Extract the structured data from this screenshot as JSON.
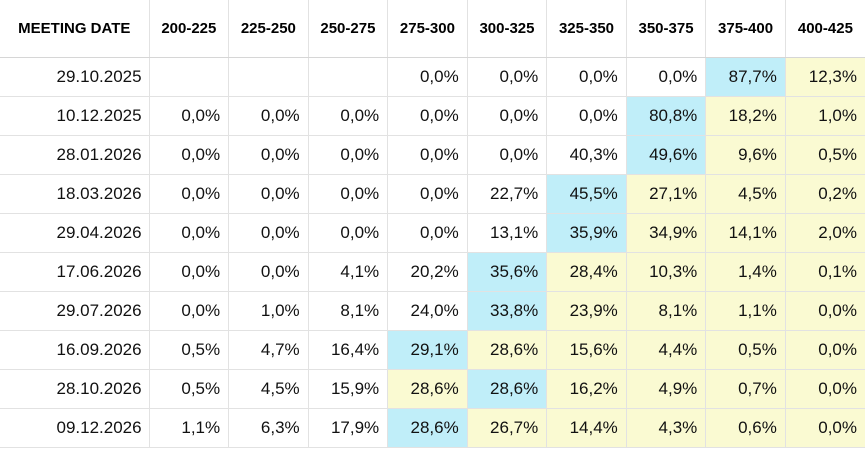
{
  "table": {
    "header": [
      "MEETING DATE",
      "200-225",
      "225-250",
      "250-275",
      "275-300",
      "300-325",
      "325-350",
      "350-375",
      "375-400",
      "400-425"
    ],
    "colors": {
      "blue": "#c0eef9",
      "yellow": "#fafad2"
    },
    "rows": [
      {
        "date": "29.10.2025",
        "cells": [
          "",
          "",
          "",
          "0,0%",
          "0,0%",
          "0,0%",
          "0,0%",
          "87,7%",
          "12,3%"
        ],
        "hl": [
          "",
          "",
          "",
          "",
          "",
          "",
          "",
          "b",
          "y"
        ]
      },
      {
        "date": "10.12.2025",
        "cells": [
          "0,0%",
          "0,0%",
          "0,0%",
          "0,0%",
          "0,0%",
          "0,0%",
          "80,8%",
          "18,2%",
          "1,0%"
        ],
        "hl": [
          "",
          "",
          "",
          "",
          "",
          "",
          "b",
          "y",
          "y"
        ]
      },
      {
        "date": "28.01.2026",
        "cells": [
          "0,0%",
          "0,0%",
          "0,0%",
          "0,0%",
          "0,0%",
          "40,3%",
          "49,6%",
          "9,6%",
          "0,5%"
        ],
        "hl": [
          "",
          "",
          "",
          "",
          "",
          "",
          "b",
          "y",
          "y"
        ]
      },
      {
        "date": "18.03.2026",
        "cells": [
          "0,0%",
          "0,0%",
          "0,0%",
          "0,0%",
          "22,7%",
          "45,5%",
          "27,1%",
          "4,5%",
          "0,2%"
        ],
        "hl": [
          "",
          "",
          "",
          "",
          "",
          "b",
          "y",
          "y",
          "y"
        ]
      },
      {
        "date": "29.04.2026",
        "cells": [
          "0,0%",
          "0,0%",
          "0,0%",
          "0,0%",
          "13,1%",
          "35,9%",
          "34,9%",
          "14,1%",
          "2,0%"
        ],
        "hl": [
          "",
          "",
          "",
          "",
          "",
          "b",
          "y",
          "y",
          "y"
        ]
      },
      {
        "date": "17.06.2026",
        "cells": [
          "0,0%",
          "0,0%",
          "4,1%",
          "20,2%",
          "35,6%",
          "28,4%",
          "10,3%",
          "1,4%",
          "0,1%"
        ],
        "hl": [
          "",
          "",
          "",
          "",
          "b",
          "y",
          "y",
          "y",
          "y"
        ]
      },
      {
        "date": "29.07.2026",
        "cells": [
          "0,0%",
          "1,0%",
          "8,1%",
          "24,0%",
          "33,8%",
          "23,9%",
          "8,1%",
          "1,1%",
          "0,0%"
        ],
        "hl": [
          "",
          "",
          "",
          "",
          "b",
          "y",
          "y",
          "y",
          "y"
        ]
      },
      {
        "date": "16.09.2026",
        "cells": [
          "0,5%",
          "4,7%",
          "16,4%",
          "29,1%",
          "28,6%",
          "15,6%",
          "4,4%",
          "0,5%",
          "0,0%"
        ],
        "hl": [
          "",
          "",
          "",
          "b",
          "y",
          "y",
          "y",
          "y",
          "y"
        ]
      },
      {
        "date": "28.10.2026",
        "cells": [
          "0,5%",
          "4,5%",
          "15,9%",
          "28,6%",
          "28,6%",
          "16,2%",
          "4,9%",
          "0,7%",
          "0,0%"
        ],
        "hl": [
          "",
          "",
          "",
          "y",
          "b",
          "y",
          "y",
          "y",
          "y"
        ]
      },
      {
        "date": "09.12.2026",
        "cells": [
          "1,1%",
          "6,3%",
          "17,9%",
          "28,6%",
          "26,7%",
          "14,4%",
          "4,3%",
          "0,6%",
          "0,0%"
        ],
        "hl": [
          "",
          "",
          "",
          "b",
          "y",
          "y",
          "y",
          "y",
          "y"
        ]
      }
    ]
  }
}
